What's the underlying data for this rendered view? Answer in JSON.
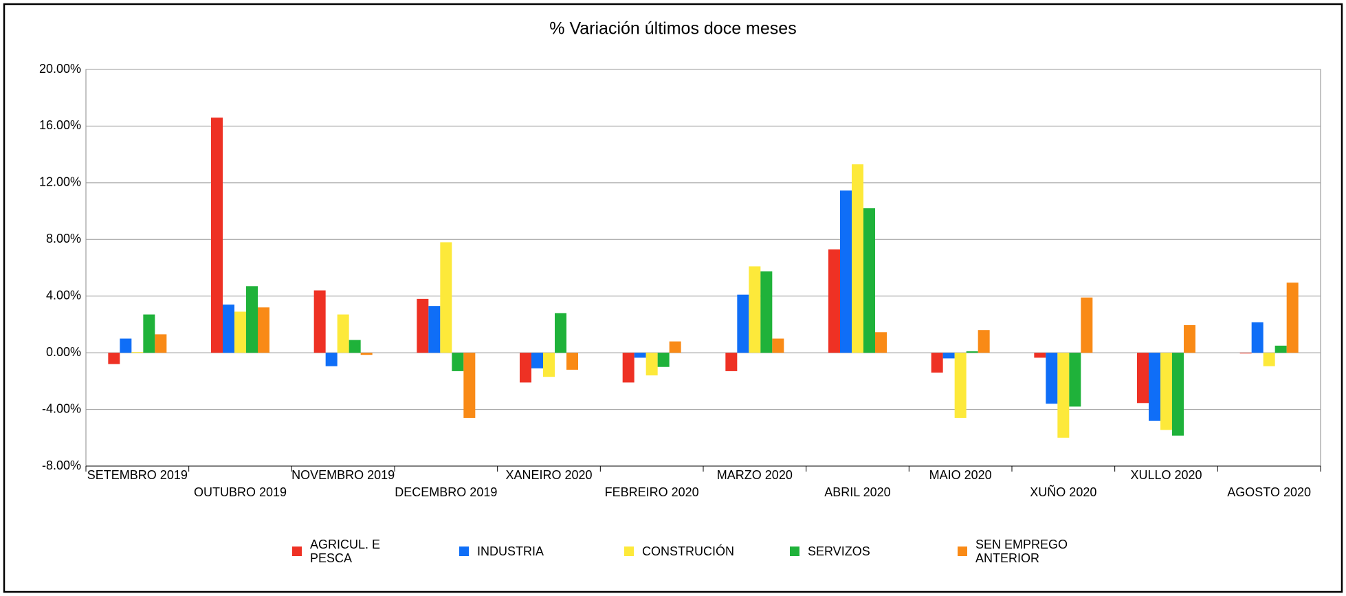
{
  "chart_data": {
    "type": "bar",
    "title": "% Variación últimos doce meses",
    "categories": [
      "SETEMBRO 2019",
      "OUTUBRO 2019",
      "NOVEMBRO 2019",
      "DECEMBRO 2019",
      "XANEIRO 2020",
      "FEBREIRO 2020",
      "MARZO 2020",
      "ABRIL 2020",
      "MAIO 2020",
      "XUÑO 2020",
      "XULLO 2020",
      "AGOSTO 2020"
    ],
    "series": [
      {
        "name": "AGRICUL. E PESCA",
        "color": "#ee3124",
        "values": [
          -0.8,
          16.6,
          4.4,
          3.8,
          -2.1,
          -2.1,
          -1.3,
          7.3,
          -1.4,
          -0.35,
          -3.55,
          -0.05
        ]
      },
      {
        "name": "INDUSTRIA",
        "color": "#0f6ef7",
        "values": [
          1.0,
          3.4,
          -0.95,
          3.3,
          -1.1,
          -0.35,
          4.1,
          11.45,
          -0.4,
          -3.6,
          -4.8,
          2.15
        ]
      },
      {
        "name": "CONSTRUCIÓN",
        "color": "#fde93a",
        "values": [
          0.05,
          2.9,
          2.7,
          7.8,
          -1.7,
          -1.6,
          6.1,
          13.3,
          -4.6,
          -6.0,
          -5.45,
          -0.95
        ]
      },
      {
        "name": "SERVIZOS",
        "color": "#1fb23a",
        "values": [
          2.7,
          4.7,
          0.9,
          -1.3,
          2.8,
          -1.0,
          5.75,
          10.2,
          0.1,
          -3.8,
          -5.85,
          0.5
        ]
      },
      {
        "name": "SEN EMPREGO ANTERIOR",
        "color": "#f98a16",
        "values": [
          1.3,
          3.2,
          -0.15,
          -4.6,
          -1.2,
          0.8,
          1.0,
          1.45,
          1.6,
          3.9,
          1.95,
          4.95
        ]
      }
    ],
    "ylim": [
      -8,
      20
    ],
    "yticks": [
      {
        "value": -8,
        "label": "-8.00%"
      },
      {
        "value": -4,
        "label": "-4.00%"
      },
      {
        "value": 0,
        "label": "0.00%"
      },
      {
        "value": 4,
        "label": "4.00%"
      },
      {
        "value": 8,
        "label": "8.00%"
      },
      {
        "value": 12,
        "label": "12.00%"
      },
      {
        "value": 16,
        "label": "16.00%"
      },
      {
        "value": 20,
        "label": "20.00%"
      }
    ],
    "grid": true,
    "legend": "bottom"
  }
}
